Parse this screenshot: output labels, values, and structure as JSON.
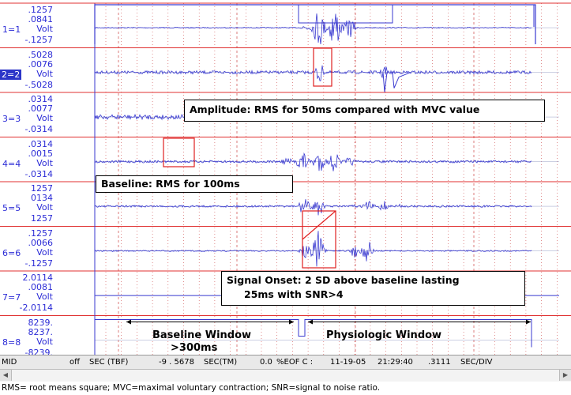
{
  "channels": [
    {
      "ch": "1=1",
      "top": ".1257",
      "mid": ".0841",
      "unit": "Volt",
      "bottom": "-.1257",
      "selected": false
    },
    {
      "ch": "2=2",
      "top": ".5028",
      "mid": ".0076",
      "unit": "Volt",
      "bottom": "-.5028",
      "selected": true
    },
    {
      "ch": "3=3",
      "top": ".0314",
      "mid": ".0077",
      "unit": "Volt",
      "bottom": "-.0314",
      "selected": false
    },
    {
      "ch": "4=4",
      "top": ".0314",
      "mid": ".0015",
      "unit": "Volt",
      "bottom": "-.0314",
      "selected": false
    },
    {
      "ch": "5=5",
      "top": "1257",
      "mid": "0134",
      "unit": "Volt",
      "bottom": "1257",
      "selected": false
    },
    {
      "ch": "6=6",
      "top": ".1257",
      "mid": ".0066",
      "unit": "Volt",
      "bottom": "-.1257",
      "selected": false
    },
    {
      "ch": "7=7",
      "top": "2.0114",
      "mid": ".0081",
      "unit": "Volt",
      "bottom": "-2.0114",
      "selected": false
    },
    {
      "ch": "8=8",
      "top": "8239.",
      "mid": "8237.",
      "unit": "Volt",
      "bottom": "-8239.",
      "selected": false
    }
  ],
  "annotations": {
    "amplitude": "Amplitude: RMS for 50ms compared with MVC value",
    "baseline": "Baseline: RMS for 100ms",
    "onset_line1": "Signal Onset: 2 SD above baseline lasting",
    "onset_line2": "25ms with SNR>4",
    "baseline_window_line1": "Baseline Window",
    "baseline_window_line2": ">300ms",
    "physiologic_window": "Physiologic Window"
  },
  "status_bar": {
    "mode": "MID",
    "state": "off",
    "time_base": "SEC (TBF)",
    "time_value": "-9 . 5678",
    "time_unit": "SEC(TM)",
    "eof_value": "0.0",
    "eof_label": "%EOF C :",
    "date": "11-19-05",
    "clock": "21:29:40",
    "div_value": ".3111",
    "div_unit": "SEC/DIV"
  },
  "caption": "RMS= root means square; MVC=maximal voluntary contraction; SNR=signal to noise ratio.",
  "colors": {
    "trace": "#3a3ad0",
    "separator": "#e03030",
    "grid": "#cc4444",
    "highlight": "#e02020",
    "label": "#2b2bd6"
  }
}
